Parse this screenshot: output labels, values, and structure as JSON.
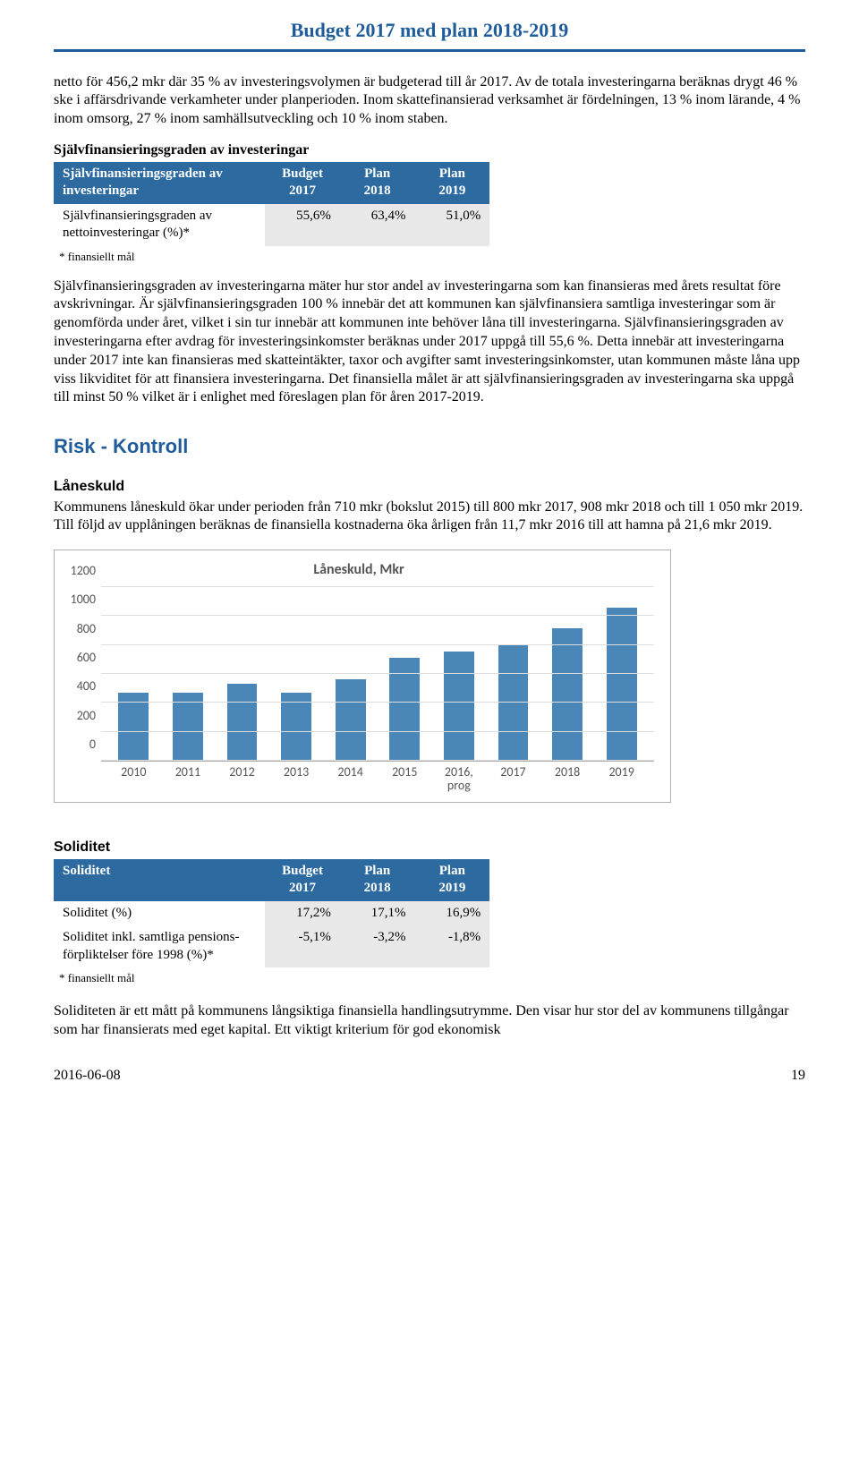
{
  "header": {
    "title": "Budget 2017 med plan 2018-2019"
  },
  "para1": "netto för 456,2 mkr där 35 % av investeringsvolymen är budgeterad till år 2017. Av de totala investeringarna beräknas drygt 46 % ske i affärsdrivande verkamheter under planperioden. Inom skattefinansierad verksamhet är fördelningen, 13 % inom lärande, 4 % inom omsorg, 27 % inom samhällsutveckling och 10 % inom staben.",
  "section1_heading": "Självfinansieringsgraden av investeringar",
  "table1": {
    "head_label": "Självfinansieringsgraden av investeringar",
    "col1": "Budget\n2017",
    "col2": "Plan\n2018",
    "col3": "Plan\n2019",
    "row1_label": "Självfinansieringsgraden av nettoinvesteringar (%)*",
    "row1_v1": "55,6%",
    "row1_v2": "63,4%",
    "row1_v3": "51,0%"
  },
  "footnote1": "* finansiellt mål",
  "para2": "Självfinansieringsgraden av investeringarna mäter hur stor andel av investeringarna som kan finansieras med årets resultat före avskrivningar. Är självfinansieringsgraden 100 % innebär det att kommunen kan självfinansiera samtliga investeringar som är genomförda under året, vilket i sin tur innebär att kommunen inte behöver låna till investeringarna. Självfinansieringsgraden av investeringarna efter avdrag för investeringsinkomster beräknas under 2017 uppgå till 55,6 %. Detta innebär att investeringarna under 2017 inte kan finansieras med skatteintäkter, taxor och avgifter samt investeringsinkomster, utan kommunen måste låna upp viss likviditet för att finansiera investeringarna. Det finansiella målet är att självfinansieringsgraden av investeringarna ska uppgå till minst 50 % vilket är i enlighet med föreslagen plan för åren 2017-2019.",
  "risk_heading": "Risk - Kontroll",
  "sub1": "Låneskuld",
  "para3": "Kommunens låneskuld ökar under perioden från 710 mkr (bokslut 2015) till 800 mkr 2017, 908 mkr 2018 och till 1 050 mkr 2019. Till följd av upplåningen beräknas de finansiella kostnaderna öka årligen från 11,7 mkr 2016 till att hamna på 21,6 mkr 2019.",
  "chart": {
    "type": "bar",
    "title": "Låneskuld, Mkr",
    "ylim_max": 1200,
    "yticks": [
      0,
      200,
      400,
      600,
      800,
      1000,
      1200
    ],
    "categories": [
      "2010",
      "2011",
      "2012",
      "2013",
      "2014",
      "2015",
      "2016,\nprog",
      "2017",
      "2018",
      "2019"
    ],
    "values": [
      470,
      470,
      530,
      470,
      560,
      710,
      750,
      800,
      908,
      1050
    ],
    "bar_color": "#4a86b8",
    "grid_color": "#dddddd",
    "text_color": "#555555",
    "background": "#ffffff"
  },
  "sub2": "Soliditet",
  "table2": {
    "head_label": "Soliditet",
    "col1": "Budget\n2017",
    "col2": "Plan\n2018",
    "col3": "Plan\n2019",
    "row1_label": "Soliditet (%)",
    "row1_v1": "17,2%",
    "row1_v2": "17,1%",
    "row1_v3": "16,9%",
    "row2_label": "Soliditet inkl. samtliga pensions-förpliktelser före 1998 (%)*",
    "row2_v1": "-5,1%",
    "row2_v2": "-3,2%",
    "row2_v3": "-1,8%"
  },
  "footnote2": "* finansiellt mål",
  "para4": "Soliditeten är ett mått på kommunens långsiktiga finansiella handlingsutrymme. Den visar hur stor del av kommunens tillgångar som har finansierats med eget kapital. Ett viktigt kriterium för god ekonomisk",
  "footer": {
    "date": "2016-06-08",
    "page": "19"
  }
}
